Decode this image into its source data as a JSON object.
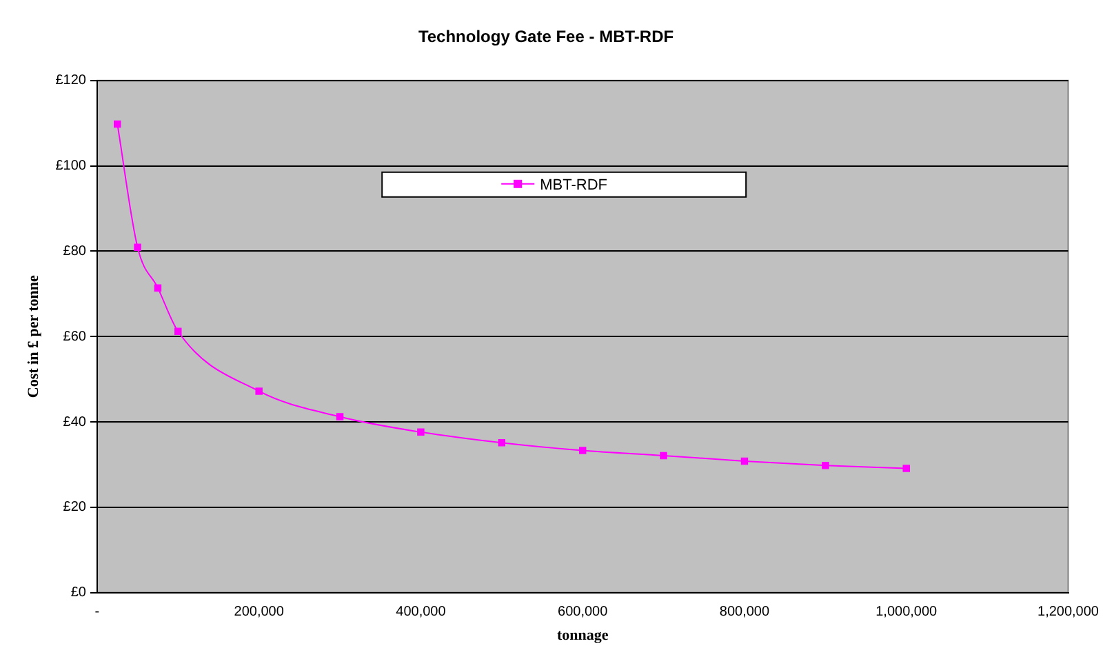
{
  "chart_data": {
    "type": "line",
    "title": "Technology Gate Fee - MBT-RDF",
    "xlabel": "tonnage",
    "ylabel": "Cost in £ per tonne",
    "x": [
      25000,
      50000,
      75000,
      100000,
      200000,
      300000,
      400000,
      500000,
      600000,
      700000,
      800000,
      900000,
      1000000
    ],
    "series": [
      {
        "name": "MBT-RDF",
        "color": "#ff00ff",
        "values": [
          109.8,
          80.9,
          71.4,
          61.2,
          47.2,
          41.2,
          37.6,
          35.1,
          33.3,
          32.1,
          30.8,
          29.8,
          29.1
        ]
      }
    ],
    "xlim": [
      0,
      1200000
    ],
    "xticks": [
      {
        "value": 0,
        "label": "-"
      },
      {
        "value": 200000,
        "label": "200,000"
      },
      {
        "value": 400000,
        "label": "400,000"
      },
      {
        "value": 600000,
        "label": "600,000"
      },
      {
        "value": 800000,
        "label": "800,000"
      },
      {
        "value": 1000000,
        "label": "1,000,000"
      },
      {
        "value": 1200000,
        "label": "1,200,000"
      }
    ],
    "ylim": [
      0,
      120
    ],
    "yticks": [
      {
        "value": 0,
        "label": "£0"
      },
      {
        "value": 20,
        "label": "£20"
      },
      {
        "value": 40,
        "label": "£40"
      },
      {
        "value": 60,
        "label": "£60"
      },
      {
        "value": 80,
        "label": "£80"
      },
      {
        "value": 100,
        "label": "£100"
      },
      {
        "value": 120,
        "label": "£120"
      }
    ],
    "grid": "y",
    "legend": "top",
    "marker": "square",
    "line_style": "solid"
  }
}
